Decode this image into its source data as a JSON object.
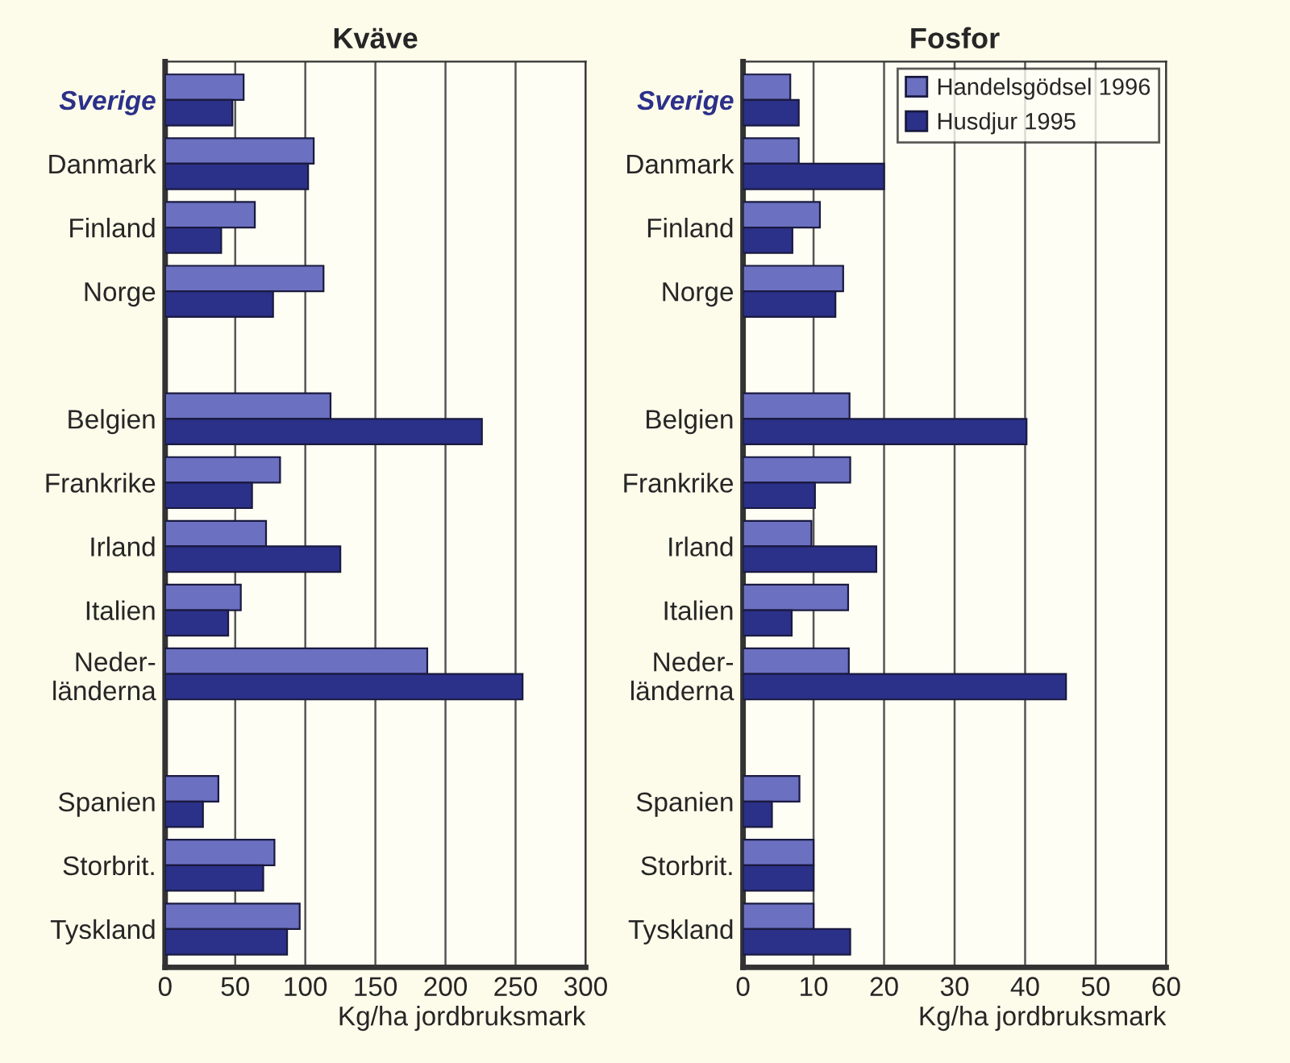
{
  "chart_data": [
    {
      "type": "bar",
      "orientation": "horizontal",
      "title": "Kväve",
      "xlabel": "Kg/ha jordbruksmark",
      "categories": [
        "Sverige",
        "Danmark",
        "Finland",
        "Norge",
        null,
        "Belgien",
        "Frankrike",
        "Irland",
        "Italien",
        "Neder-\nländerna",
        null,
        "Spanien",
        "Storbrit.",
        "Tyskland"
      ],
      "series": [
        {
          "color": "#6b70c0",
          "values": [
            56,
            106,
            64,
            113,
            null,
            118,
            82,
            72,
            54,
            187,
            null,
            38,
            78,
            96
          ]
        },
        {
          "color": "#2b3088",
          "values": [
            48,
            102,
            40,
            77,
            null,
            226,
            62,
            125,
            45,
            255,
            null,
            27,
            70,
            87
          ]
        }
      ],
      "xlim": [
        0,
        300
      ],
      "xticks": [
        0,
        50,
        100,
        150,
        200,
        250,
        300
      ],
      "grid": "x",
      "legend": false
    },
    {
      "type": "bar",
      "orientation": "horizontal",
      "title": "Fosfor",
      "xlabel": "Kg/ha jordbruksmark",
      "categories": [
        "Sverige",
        "Danmark",
        "Finland",
        "Norge",
        null,
        "Belgien",
        "Frankrike",
        "Irland",
        "Italien",
        "Neder-\nländerna",
        null,
        "Spanien",
        "Storbrit.",
        "Tyskland"
      ],
      "series": [
        {
          "name": "Handelsgödsel 1996",
          "color": "#6b70c0",
          "values": [
            6.7,
            7.9,
            10.9,
            14.2,
            null,
            15.1,
            15.2,
            9.7,
            14.9,
            15,
            null,
            8,
            10,
            10
          ]
        },
        {
          "name": "Husdjur 1995",
          "color": "#2b3088",
          "values": [
            7.9,
            20,
            7,
            13.1,
            null,
            40.2,
            10.2,
            18.9,
            6.9,
            45.8,
            null,
            4.1,
            10,
            15.2
          ]
        }
      ],
      "xlim": [
        0,
        60
      ],
      "xticks": [
        0,
        10,
        20,
        30,
        40,
        50,
        60
      ],
      "grid": "x",
      "legend": "top right"
    }
  ]
}
